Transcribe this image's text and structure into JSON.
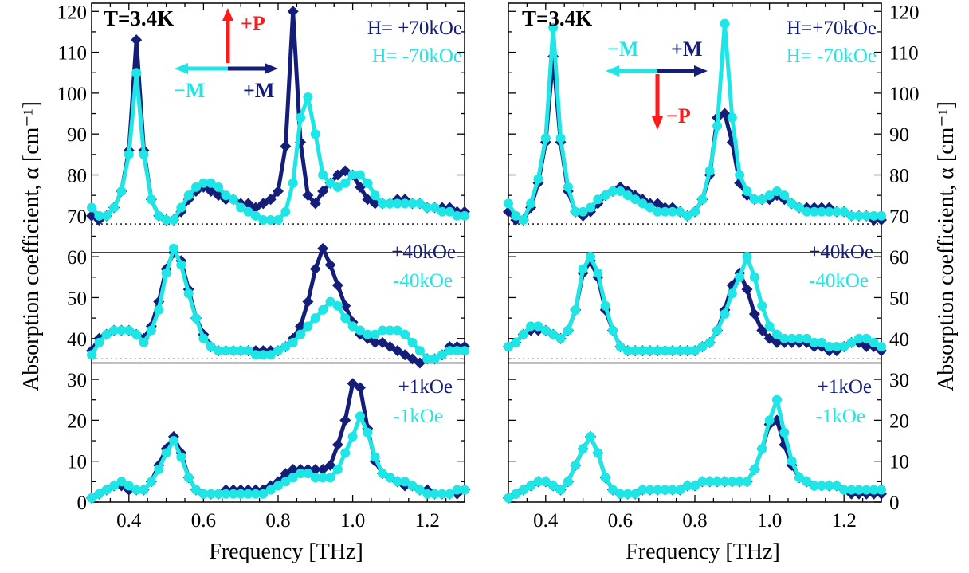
{
  "colors": {
    "navy": "#141e78",
    "cyan": "#1ee6e6",
    "red": "#ff1a1a",
    "axis": "#000000"
  },
  "chart_data": [
    {
      "type": "line",
      "panel": "left",
      "xlabel": "Frequency [THz]",
      "ylabel": "Absorption coefficient, α [cm⁻¹]",
      "xlim": [
        0.3,
        1.3
      ],
      "ylim": [
        0,
        122
      ],
      "xticks": [
        "0.4",
        "0.6",
        "0.8",
        "1.0",
        "1.2"
      ],
      "yticks": [
        "0",
        "10",
        "20",
        "30",
        "40",
        "50",
        "60",
        "70",
        "80",
        "90",
        "100",
        "110",
        "120"
      ],
      "baselines": [
        68,
        35
      ],
      "separators": [
        61,
        34
      ],
      "annotations": {
        "temperature": "T=3.4K",
        "polarization": "+P",
        "minus_m": "−M",
        "plus_m": "+M",
        "field_top_pos": "H= +70kOe",
        "field_top_neg": "H= -70kOe",
        "field_mid_pos": "+40kOe",
        "field_mid_neg": "-40kOe",
        "field_bot_pos": "+1kOe",
        "field_bot_neg": "-1kOe"
      },
      "x": [
        0.3,
        0.32,
        0.34,
        0.36,
        0.38,
        0.4,
        0.42,
        0.44,
        0.46,
        0.48,
        0.5,
        0.52,
        0.54,
        0.56,
        0.58,
        0.6,
        0.62,
        0.64,
        0.66,
        0.68,
        0.7,
        0.72,
        0.74,
        0.76,
        0.78,
        0.8,
        0.82,
        0.84,
        0.86,
        0.88,
        0.9,
        0.92,
        0.94,
        0.96,
        0.98,
        1.0,
        1.02,
        1.04,
        1.06,
        1.08,
        1.1,
        1.12,
        1.14,
        1.16,
        1.18,
        1.2,
        1.22,
        1.24,
        1.26,
        1.28,
        1.3
      ],
      "series": [
        {
          "group": "70kOe",
          "field": "+70kOe",
          "color": "navy",
          "marker": "diamond",
          "values": [
            70,
            69,
            70,
            72,
            76,
            86,
            113,
            86,
            74,
            70,
            69,
            69,
            71,
            74,
            76,
            77,
            76,
            75,
            74,
            74,
            73,
            73,
            72,
            73,
            74,
            76,
            87,
            120,
            88,
            75,
            73,
            76,
            78,
            80,
            81,
            80,
            77,
            74,
            73,
            73,
            73,
            74,
            74,
            73,
            73,
            72,
            72,
            72,
            72,
            71,
            71
          ]
        },
        {
          "group": "70kOe",
          "field": "-70kOe",
          "color": "cyan",
          "marker": "circle",
          "values": [
            72,
            70,
            70,
            72,
            76,
            85,
            105,
            85,
            74,
            70,
            69,
            69,
            72,
            75,
            77,
            78,
            78,
            77,
            75,
            74,
            72,
            71,
            70,
            69,
            69,
            69,
            71,
            78,
            94,
            99,
            90,
            80,
            78,
            77,
            78,
            80,
            80,
            78,
            75,
            73,
            73,
            73,
            73,
            73,
            73,
            72,
            72,
            71,
            71,
            70,
            70
          ]
        },
        {
          "group": "40kOe",
          "field": "+40kOe",
          "color": "navy",
          "marker": "diamond",
          "values": [
            37,
            40,
            41,
            42,
            42,
            42,
            41,
            40,
            43,
            49,
            57,
            61,
            59,
            52,
            45,
            41,
            38,
            37,
            37,
            37,
            37,
            37,
            37,
            37,
            37,
            37,
            38,
            40,
            43,
            49,
            57,
            62,
            58,
            53,
            48,
            44,
            41,
            40,
            39,
            39,
            38,
            37,
            36,
            35,
            34,
            35,
            35,
            36,
            38,
            38,
            38
          ]
        },
        {
          "group": "40kOe",
          "field": "-40kOe",
          "color": "cyan",
          "marker": "circle",
          "values": [
            36,
            39,
            41,
            42,
            42,
            42,
            41,
            39,
            42,
            47,
            56,
            62,
            58,
            51,
            45,
            40,
            38,
            37,
            37,
            37,
            37,
            37,
            36,
            36,
            36,
            37,
            38,
            39,
            41,
            43,
            45,
            47,
            49,
            48,
            45,
            43,
            42,
            41,
            41,
            42,
            42,
            42,
            41,
            39,
            37,
            35,
            35,
            36,
            37,
            37,
            37
          ]
        },
        {
          "group": "1kOe",
          "field": "+1kOe",
          "color": "navy",
          "marker": "diamond",
          "values": [
            1,
            2,
            3,
            4,
            4,
            3,
            3,
            3,
            5,
            9,
            13,
            16,
            12,
            6,
            3,
            2,
            2,
            2,
            3,
            3,
            3,
            3,
            3,
            3,
            4,
            5,
            7,
            8,
            8,
            8,
            8,
            8,
            9,
            14,
            20,
            29,
            28,
            18,
            10,
            7,
            6,
            5,
            4,
            4,
            3,
            3,
            2,
            2,
            2,
            2,
            3
          ]
        },
        {
          "group": "1kOe",
          "field": "-1kOe",
          "color": "cyan",
          "marker": "circle",
          "values": [
            1,
            2,
            3,
            4,
            5,
            4,
            3,
            3,
            5,
            8,
            12,
            15,
            11,
            6,
            3,
            2,
            2,
            2,
            2,
            2,
            2,
            2,
            2,
            2,
            3,
            4,
            5,
            6,
            7,
            7,
            6,
            6,
            6,
            8,
            12,
            16,
            21,
            17,
            11,
            7,
            6,
            5,
            5,
            4,
            3,
            2,
            2,
            2,
            2,
            3,
            3
          ]
        }
      ]
    },
    {
      "type": "line",
      "panel": "right",
      "xlabel": "Frequency [THz]",
      "ylabel": "Absorption coefficient, α [cm⁻¹]",
      "xlim": [
        0.3,
        1.3
      ],
      "ylim": [
        0,
        122
      ],
      "xticks": [
        "0.4",
        "0.6",
        "0.8",
        "1.0",
        "1.2"
      ],
      "yticks": [
        "0",
        "10",
        "20",
        "30",
        "40",
        "50",
        "60",
        "70",
        "80",
        "90",
        "100",
        "110",
        "120"
      ],
      "baselines": [
        68,
        35
      ],
      "separators": [
        61,
        34
      ],
      "annotations": {
        "temperature": "T=3.4K",
        "polarization": "−P",
        "minus_m": "−M",
        "plus_m": "+M",
        "field_top_pos": "H=+70kOe",
        "field_top_neg": "H= -70kOe",
        "field_mid_pos": "+40kOe",
        "field_mid_neg": "-40kOe",
        "field_bot_pos": "+1kOe",
        "field_bot_neg": "-1kOe"
      },
      "x": [
        0.3,
        0.32,
        0.34,
        0.36,
        0.38,
        0.4,
        0.42,
        0.44,
        0.46,
        0.48,
        0.5,
        0.52,
        0.54,
        0.56,
        0.58,
        0.6,
        0.62,
        0.64,
        0.66,
        0.68,
        0.7,
        0.72,
        0.74,
        0.76,
        0.78,
        0.8,
        0.82,
        0.84,
        0.86,
        0.88,
        0.9,
        0.92,
        0.94,
        0.96,
        0.98,
        1.0,
        1.02,
        1.04,
        1.06,
        1.08,
        1.1,
        1.12,
        1.14,
        1.16,
        1.18,
        1.2,
        1.22,
        1.24,
        1.26,
        1.28,
        1.3
      ],
      "series": [
        {
          "group": "70kOe",
          "field": "+70kOe",
          "color": "navy",
          "marker": "diamond",
          "values": [
            71,
            69,
            69,
            72,
            78,
            88,
            109,
            88,
            76,
            71,
            70,
            71,
            73,
            75,
            76,
            77,
            76,
            75,
            74,
            73,
            73,
            72,
            72,
            71,
            70,
            71,
            74,
            80,
            94,
            95,
            88,
            78,
            75,
            74,
            74,
            74,
            75,
            74,
            73,
            72,
            72,
            72,
            72,
            72,
            71,
            71,
            70,
            70,
            70,
            69,
            69
          ]
        },
        {
          "group": "70kOe",
          "field": "-70kOe",
          "color": "cyan",
          "marker": "circle",
          "values": [
            73,
            70,
            69,
            73,
            79,
            89,
            116,
            89,
            77,
            71,
            71,
            72,
            74,
            75,
            76,
            76,
            75,
            74,
            73,
            72,
            71,
            71,
            71,
            71,
            70,
            71,
            74,
            81,
            92,
            117,
            94,
            80,
            76,
            74,
            74,
            75,
            76,
            75,
            73,
            72,
            71,
            71,
            71,
            71,
            71,
            71,
            70,
            70,
            70,
            70,
            70
          ]
        },
        {
          "group": "40kOe",
          "field": "+40kOe",
          "color": "navy",
          "marker": "diamond",
          "values": [
            38,
            39,
            41,
            42,
            42,
            42,
            41,
            40,
            42,
            47,
            56,
            59,
            55,
            47,
            42,
            38,
            37,
            37,
            37,
            37,
            37,
            37,
            37,
            37,
            37,
            37,
            38,
            39,
            42,
            47,
            53,
            56,
            52,
            46,
            42,
            40,
            39,
            39,
            39,
            39,
            39,
            38,
            38,
            37,
            37,
            38,
            39,
            39,
            38,
            38,
            37
          ]
        },
        {
          "group": "40kOe",
          "field": "-40kOe",
          "color": "cyan",
          "marker": "circle",
          "values": [
            38,
            39,
            41,
            43,
            43,
            42,
            41,
            40,
            42,
            47,
            57,
            60,
            56,
            48,
            42,
            38,
            37,
            37,
            37,
            37,
            37,
            37,
            37,
            37,
            37,
            37,
            38,
            39,
            42,
            46,
            51,
            55,
            60,
            55,
            48,
            43,
            41,
            40,
            40,
            40,
            40,
            39,
            39,
            38,
            38,
            38,
            39,
            40,
            40,
            39,
            38
          ]
        },
        {
          "group": "1kOe",
          "field": "+1kOe",
          "color": "navy",
          "marker": "diamond",
          "values": [
            1,
            2,
            3,
            4,
            5,
            5,
            4,
            3,
            5,
            9,
            13,
            16,
            12,
            6,
            3,
            2,
            2,
            2,
            3,
            3,
            3,
            3,
            3,
            3,
            4,
            4,
            5,
            5,
            5,
            5,
            5,
            5,
            5,
            8,
            13,
            19,
            20,
            14,
            9,
            6,
            5,
            4,
            4,
            4,
            4,
            3,
            2,
            2,
            2,
            2,
            2
          ]
        },
        {
          "group": "1kOe",
          "field": "-1kOe",
          "color": "cyan",
          "marker": "circle",
          "values": [
            1,
            2,
            3,
            4,
            5,
            5,
            4,
            3,
            5,
            9,
            13,
            16,
            12,
            6,
            3,
            2,
            2,
            2,
            3,
            3,
            3,
            3,
            3,
            3,
            4,
            4,
            5,
            5,
            5,
            5,
            5,
            5,
            5,
            8,
            13,
            20,
            25,
            17,
            10,
            6,
            5,
            4,
            4,
            4,
            4,
            3,
            3,
            3,
            3,
            3,
            3
          ]
        }
      ]
    }
  ]
}
